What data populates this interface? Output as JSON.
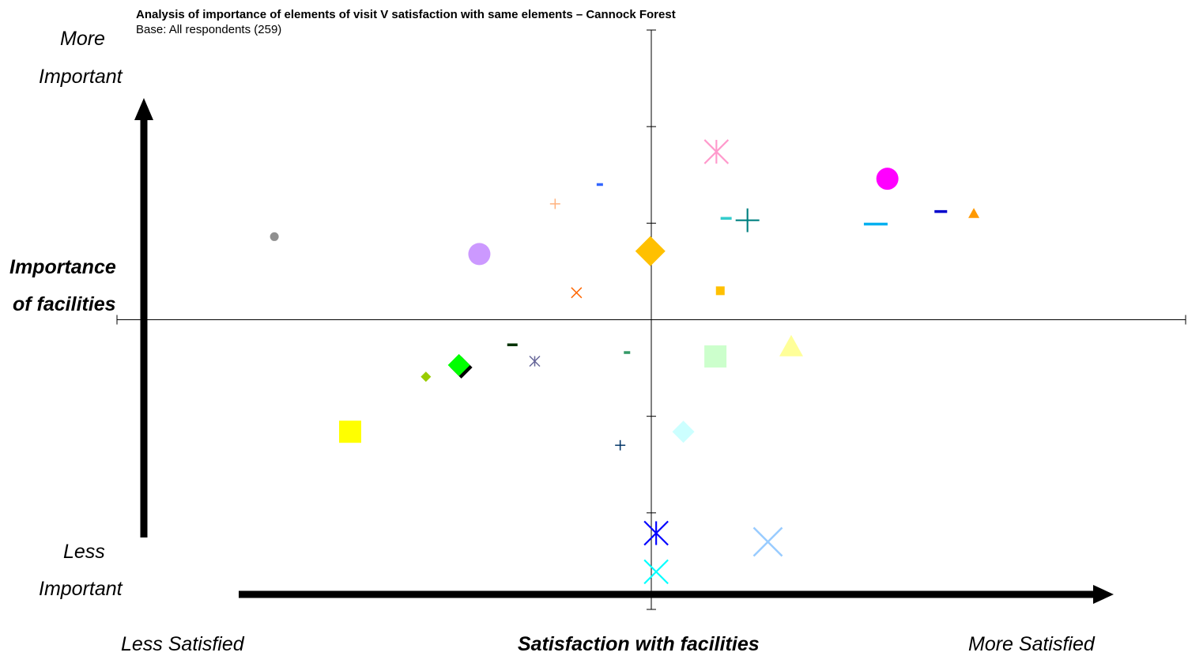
{
  "chart_data": {
    "type": "scatter",
    "title": "Analysis of importance of elements of visit V satisfaction with same elements – Cannock Forest",
    "subtitle": "Base: All respondents (259)",
    "x_axis": {
      "title": "Satisfaction with facilities",
      "low_label": "Less Satisfied",
      "high_label": "More Satisfied",
      "range": [
        -5.5,
        5.5
      ],
      "origin": 0
    },
    "y_axis": {
      "title_line1": "Importance",
      "title_line2": "of facilities",
      "high_label_line1": "More",
      "high_label_line2": "Important",
      "low_label_line1": "Less",
      "low_label_line2": "Important",
      "range": [
        -3.0,
        3.0
      ],
      "origin": 0
    },
    "grid": false,
    "legend": "none",
    "points": [
      {
        "x": -3.88,
        "y": 0.86,
        "marker": "circle",
        "color": "#909090",
        "size": 11
      },
      {
        "x": -1.77,
        "y": 0.68,
        "marker": "circle",
        "color": "#CC99FF",
        "size": 28
      },
      {
        "x": -0.99,
        "y": 1.2,
        "marker": "plus",
        "color": "#FFB27F",
        "size": 13
      },
      {
        "x": -0.53,
        "y": 1.4,
        "marker": "dash",
        "color": "#3366FF",
        "size": 8
      },
      {
        "x": -0.77,
        "y": 0.28,
        "marker": "x",
        "color": "#FF6600",
        "size": 13
      },
      {
        "x": -0.01,
        "y": 0.71,
        "marker": "diamond",
        "color": "#FFC000",
        "size": 38
      },
      {
        "x": 0.67,
        "y": 1.74,
        "marker": "asterisk",
        "color": "#FF99CC",
        "size": 30
      },
      {
        "x": 0.77,
        "y": 1.05,
        "marker": "dash",
        "color": "#33CCCC",
        "size": 14
      },
      {
        "x": 0.99,
        "y": 1.03,
        "marker": "plus",
        "color": "#008080",
        "size": 30
      },
      {
        "x": 0.71,
        "y": 0.3,
        "marker": "square",
        "color": "#FFC000",
        "size": 11
      },
      {
        "x": 2.43,
        "y": 1.46,
        "marker": "circle",
        "color": "#FF00FF",
        "size": 28
      },
      {
        "x": 2.31,
        "y": 0.99,
        "marker": "dash",
        "color": "#00B0F0",
        "size": 30
      },
      {
        "x": 2.98,
        "y": 1.12,
        "marker": "dash",
        "color": "#0000CC",
        "size": 16
      },
      {
        "x": 3.32,
        "y": 1.1,
        "marker": "triangle",
        "color": "#FF9900",
        "size": 14
      },
      {
        "x": -1.43,
        "y": -0.26,
        "marker": "dash",
        "color": "#003300",
        "size": 13
      },
      {
        "x": -1.2,
        "y": -0.43,
        "marker": "asterisk",
        "color": "#666699",
        "size": 13
      },
      {
        "x": -0.25,
        "y": -0.34,
        "marker": "dash",
        "color": "#339966",
        "size": 8
      },
      {
        "x": -1.98,
        "y": -0.47,
        "marker": "diamond",
        "color": "#00FF00",
        "size": 28
      },
      {
        "x": -2.32,
        "y": -0.59,
        "marker": "diamond",
        "color": "#99CC00",
        "size": 13
      },
      {
        "x": 0.66,
        "y": -0.38,
        "marker": "square",
        "color": "#CCFFCC",
        "size": 28
      },
      {
        "x": 1.44,
        "y": -0.28,
        "marker": "triangle",
        "color": "#FFFF99",
        "size": 30
      },
      {
        "x": -3.1,
        "y": -1.16,
        "marker": "square",
        "color": "#FFFF00",
        "size": 28
      },
      {
        "x": -0.32,
        "y": -1.3,
        "marker": "plus",
        "color": "#003366",
        "size": 13
      },
      {
        "x": 0.33,
        "y": -1.16,
        "marker": "diamond",
        "color": "#CCFFFF",
        "size": 28
      },
      {
        "x": 0.05,
        "y": -2.21,
        "marker": "asterisk",
        "color": "#0000FF",
        "size": 30
      },
      {
        "x": 1.2,
        "y": -2.3,
        "marker": "x",
        "color": "#99CCFF",
        "size": 36
      },
      {
        "x": 0.05,
        "y": -2.61,
        "marker": "x",
        "color": "#00FFFF",
        "size": 30
      }
    ]
  }
}
